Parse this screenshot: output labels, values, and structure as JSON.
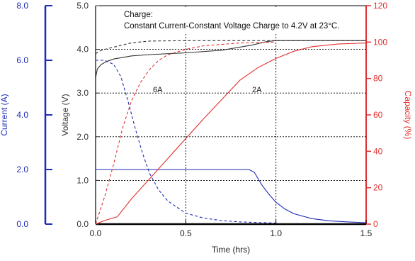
{
  "colors": {
    "voltage": "#333333",
    "current": "#1f2bb5",
    "capacity": "#e03030",
    "grid": "#000000",
    "axis_current": "#1f2bb5",
    "axis_voltage": "#333333",
    "axis_capacity": "#e03030"
  },
  "chart_data": {
    "type": "line",
    "annotation_lines": [
      "Charge:",
      "Constant Current-Constant Voltage Charge to 4.2V at 23°C."
    ],
    "xlabel": "Time (hrs)",
    "xlim": [
      0,
      1.5
    ],
    "xticks": [
      "0.0",
      "0.5",
      "1.0",
      "1.5"
    ],
    "axes": {
      "current": {
        "label": "Current (A)",
        "range": [
          0,
          8
        ],
        "ticks": [
          "0.0",
          "2.0",
          "4.0",
          "6.0",
          "8.0"
        ]
      },
      "voltage": {
        "label": "Voltage (V)",
        "range": [
          0,
          5
        ],
        "ticks": [
          "0.0",
          "1.0",
          "2.0",
          "3.0",
          "4.0",
          "5.0"
        ]
      },
      "capacity": {
        "label": "Capacity (%)",
        "range": [
          0,
          120
        ],
        "ticks": [
          "0",
          "20",
          "40",
          "60",
          "80",
          "100",
          "120"
        ]
      }
    },
    "grid": true,
    "series_labels": [
      "6A",
      "2A"
    ],
    "series": [
      {
        "name": "6A",
        "quantity": "voltage",
        "style": "dashed",
        "points": [
          [
            0,
            3.9
          ],
          [
            0.02,
            3.96
          ],
          [
            0.05,
            4.0
          ],
          [
            0.1,
            4.05
          ],
          [
            0.15,
            4.1
          ],
          [
            0.2,
            4.15
          ],
          [
            0.3,
            4.19
          ],
          [
            0.5,
            4.2
          ],
          [
            1.0,
            4.2
          ],
          [
            1.5,
            4.2
          ]
        ]
      },
      {
        "name": "2A",
        "quantity": "voltage",
        "style": "solid",
        "points": [
          [
            0,
            3.35
          ],
          [
            0.01,
            3.55
          ],
          [
            0.03,
            3.65
          ],
          [
            0.06,
            3.72
          ],
          [
            0.1,
            3.78
          ],
          [
            0.2,
            3.85
          ],
          [
            0.3,
            3.88
          ],
          [
            0.5,
            3.92
          ],
          [
            0.7,
            3.98
          ],
          [
            0.87,
            4.1
          ],
          [
            0.95,
            4.18
          ],
          [
            1.0,
            4.2
          ],
          [
            1.5,
            4.2
          ]
        ]
      },
      {
        "name": "6A",
        "quantity": "current",
        "style": "dashed",
        "points": [
          [
            0,
            6.0
          ],
          [
            0.05,
            6.0
          ],
          [
            0.1,
            5.85
          ],
          [
            0.14,
            5.4
          ],
          [
            0.18,
            4.5
          ],
          [
            0.22,
            3.5
          ],
          [
            0.26,
            2.6
          ],
          [
            0.3,
            1.85
          ],
          [
            0.35,
            1.25
          ],
          [
            0.4,
            0.85
          ],
          [
            0.5,
            0.4
          ],
          [
            0.6,
            0.22
          ],
          [
            0.7,
            0.13
          ],
          [
            0.8,
            0.08
          ],
          [
            1.0,
            0.04
          ]
        ]
      },
      {
        "name": "2A",
        "quantity": "current",
        "style": "solid",
        "points": [
          [
            0,
            2.0
          ],
          [
            0.85,
            2.0
          ],
          [
            0.88,
            1.9
          ],
          [
            0.92,
            1.45
          ],
          [
            0.96,
            1.1
          ],
          [
            1.0,
            0.8
          ],
          [
            1.05,
            0.55
          ],
          [
            1.1,
            0.38
          ],
          [
            1.2,
            0.2
          ],
          [
            1.3,
            0.12
          ],
          [
            1.4,
            0.08
          ],
          [
            1.5,
            0.05
          ]
        ]
      },
      {
        "name": "6A",
        "quantity": "capacity",
        "style": "dashed",
        "points": [
          [
            0,
            0
          ],
          [
            0.05,
            15
          ],
          [
            0.1,
            33
          ],
          [
            0.15,
            53
          ],
          [
            0.2,
            68
          ],
          [
            0.25,
            78
          ],
          [
            0.3,
            85
          ],
          [
            0.35,
            90
          ],
          [
            0.4,
            93
          ],
          [
            0.5,
            96
          ],
          [
            0.6,
            98
          ],
          [
            0.8,
            99.5
          ],
          [
            1.0,
            100
          ]
        ]
      },
      {
        "name": "2A",
        "quantity": "capacity",
        "style": "solid",
        "points": [
          [
            0,
            0
          ],
          [
            0.05,
            2
          ],
          [
            0.12,
            4
          ],
          [
            0.2,
            14
          ],
          [
            0.4,
            36
          ],
          [
            0.6,
            58
          ],
          [
            0.8,
            79
          ],
          [
            0.9,
            86
          ],
          [
            1.0,
            91
          ],
          [
            1.1,
            95
          ],
          [
            1.2,
            97.5
          ],
          [
            1.35,
            99
          ],
          [
            1.5,
            99.5
          ]
        ]
      }
    ]
  }
}
